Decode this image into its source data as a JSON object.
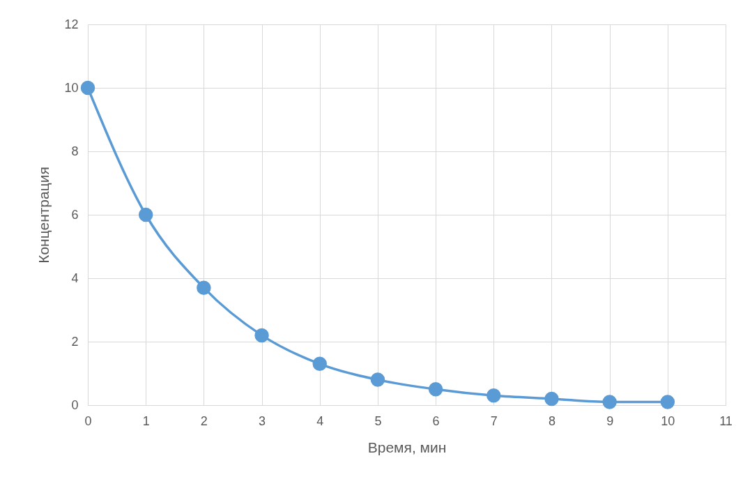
{
  "chart_data": {
    "type": "line",
    "xlabel": "Время, мин",
    "ylabel": "Концентрация",
    "x": [
      0,
      1,
      2,
      3,
      4,
      5,
      6,
      7,
      8,
      9,
      10
    ],
    "series": [
      {
        "color": "#5b9bd5",
        "values": [
          10,
          6.0,
          3.7,
          2.2,
          1.3,
          0.8,
          0.5,
          0.3,
          0.2,
          0.1,
          0.1
        ]
      }
    ],
    "xlim": [
      0,
      11
    ],
    "xticks": [
      0,
      1,
      2,
      3,
      4,
      5,
      6,
      7,
      8,
      9,
      10,
      11
    ],
    "ylim": [
      0,
      12
    ],
    "yticks": [
      0,
      2,
      4,
      6,
      8,
      10,
      12
    ],
    "grid": true,
    "legend": false,
    "marker": "circle",
    "line_style": "solid"
  }
}
